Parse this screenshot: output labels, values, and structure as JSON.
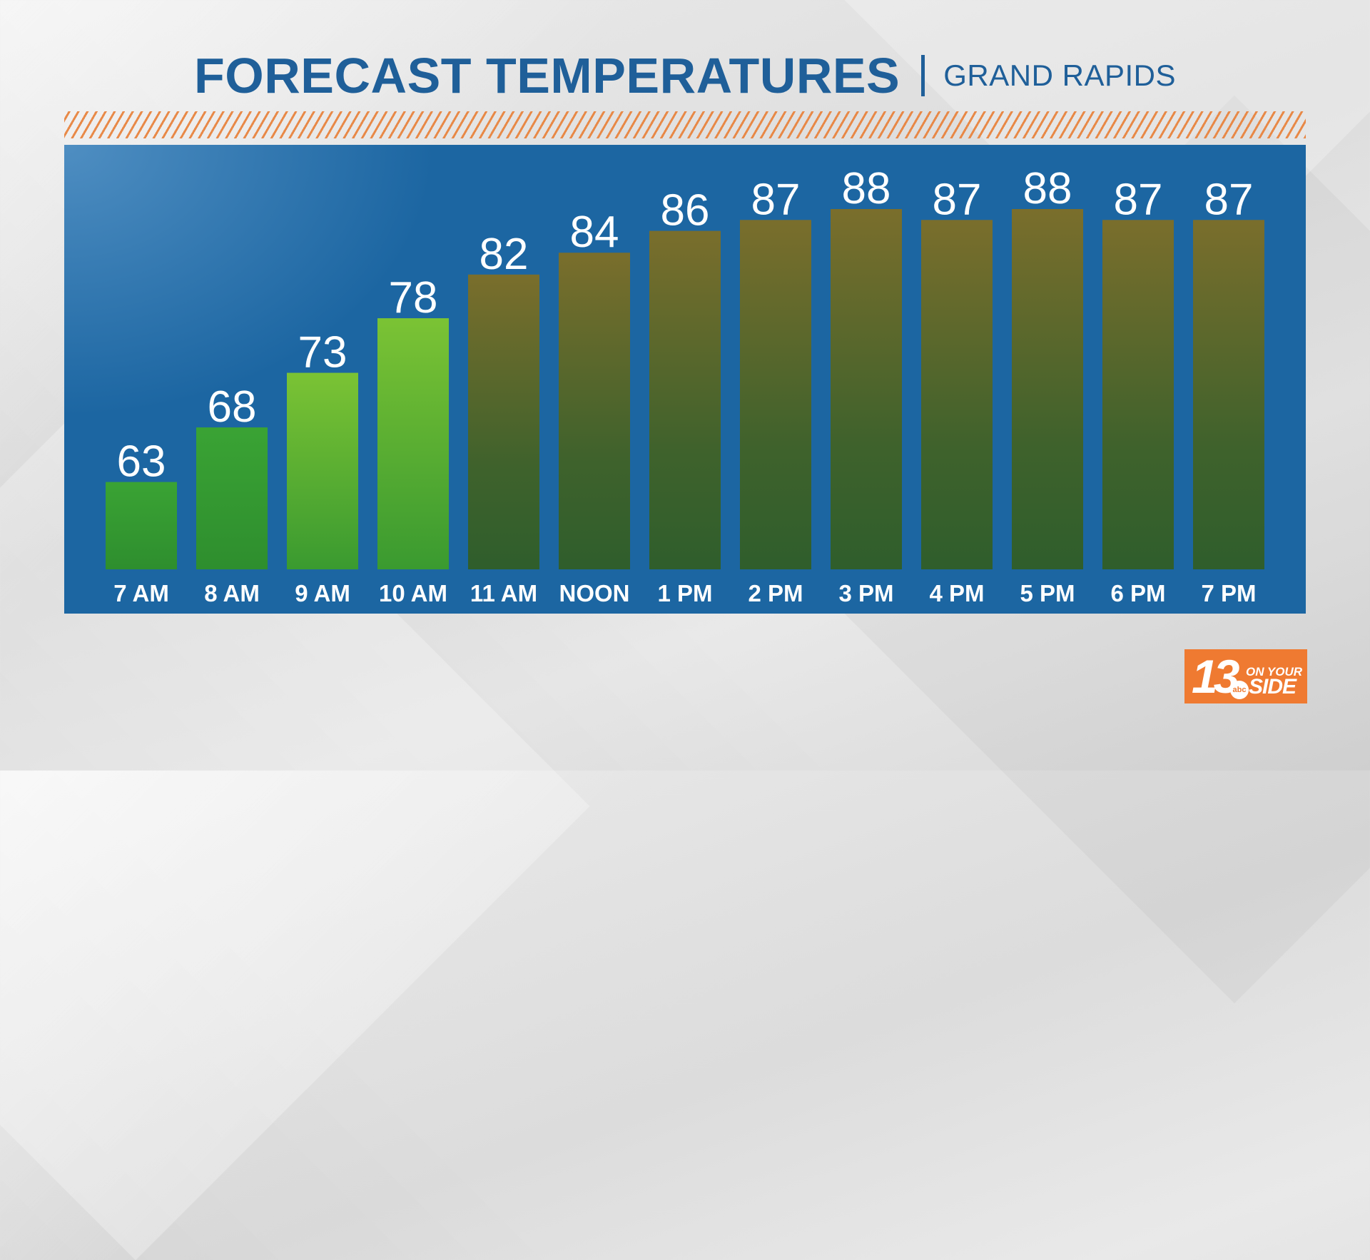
{
  "header": {
    "title": "FORECAST TEMPERATURES",
    "location": "GRAND RAPIDS"
  },
  "logo": {
    "number": "13",
    "network": "abc",
    "tagline_top": "ON YOUR",
    "tagline_bottom": "SIDE"
  },
  "colors": {
    "title": "#1f5f99",
    "panel": "#1c66a2",
    "hatch": "#e8843f",
    "logo_bg": "#ef7a31",
    "bar_low": "#3aa334",
    "bar_mid": "#7bc334",
    "bar_warm_top": "#7a6e2c",
    "bar_warm_bottom": "#2f5e2c"
  },
  "chart_data": {
    "type": "bar",
    "title": "FORECAST TEMPERATURES",
    "subtitle": "GRAND RAPIDS",
    "xlabel": "",
    "ylabel": "",
    "categories": [
      "7 AM",
      "8 AM",
      "9 AM",
      "10 AM",
      "11 AM",
      "NOON",
      "1 PM",
      "2 PM",
      "3 PM",
      "4 PM",
      "5 PM",
      "6 PM",
      "7 PM"
    ],
    "values": [
      63,
      68,
      73,
      78,
      82,
      84,
      86,
      87,
      88,
      87,
      88,
      87,
      87
    ],
    "ylim": [
      55,
      88
    ],
    "grid": false,
    "legend": "none",
    "data_labels": true
  }
}
